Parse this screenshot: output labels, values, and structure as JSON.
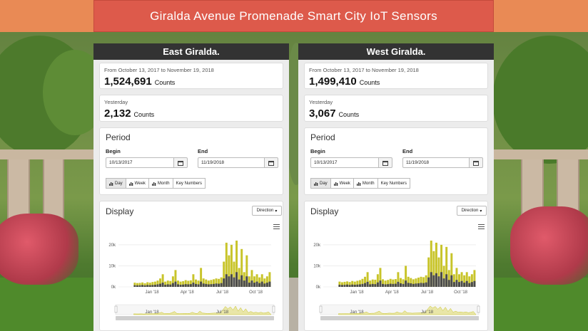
{
  "title": "Giralda Avenue Promenade Smart City IoT Sensors",
  "colors": {
    "banner": "#dd5a4b",
    "series_total": "#c8c42a",
    "series_dir": "#4a4a4a"
  },
  "panels": [
    {
      "name": "East Giralda.",
      "range_text": "From October 13, 2017 to November 19, 2018",
      "total": "1,524,691",
      "total_unit": "Counts",
      "yesterday_label": "Yesterday",
      "yesterday": "2,132",
      "yesterday_unit": "Counts",
      "period_title": "Period",
      "begin_label": "Begin",
      "begin_value": "10/13/2017",
      "end_label": "End",
      "end_value": "11/19/2018",
      "buttons": [
        "Day",
        "Week",
        "Month",
        "Key Numbers"
      ],
      "display_title": "Display",
      "direction_label": "Direction"
    },
    {
      "name": "West Giralda.",
      "range_text": "From October 13, 2017 to November 19, 2018",
      "total": "1,499,410",
      "total_unit": "Counts",
      "yesterday_label": "Yesterday",
      "yesterday": "3,067",
      "yesterday_unit": "Counts",
      "period_title": "Period",
      "begin_label": "Begin",
      "begin_value": "10/13/2017",
      "end_label": "End",
      "end_value": "11/19/2018",
      "buttons": [
        "Day",
        "Week",
        "Month",
        "Key Numbers"
      ],
      "display_title": "Display",
      "direction_label": "Direction"
    }
  ],
  "chart_data": [
    {
      "type": "area",
      "ylim": [
        0,
        22000
      ],
      "yticks": [
        "0k",
        "10k",
        "20k"
      ],
      "xticks": [
        "Jan '18",
        "Apr '18",
        "Jul '18",
        "Oct '18"
      ],
      "navigator_ticks": [
        "Jan '18",
        "Jul '18"
      ],
      "series": [
        {
          "values": [
            2000,
            1800,
            1900,
            2100,
            1700,
            2200,
            2000,
            2300,
            2500,
            3000,
            4000,
            6000,
            2500,
            3000,
            2800,
            5000,
            8000,
            3000,
            2500,
            2700,
            3200,
            2900,
            3100,
            6000,
            3500,
            3000,
            9000,
            4000,
            3500,
            3000,
            3300,
            3600,
            4000,
            3800,
            4500,
            12000,
            21000,
            15000,
            20000,
            12000,
            22000,
            9000,
            18000,
            7000,
            15000,
            5000,
            8000,
            5000,
            6000,
            4500,
            6000,
            4000,
            5000,
            7000
          ]
        },
        {
          "values": [
            800,
            700,
            750,
            900,
            700,
            900,
            800,
            900,
            1000,
            1200,
            1500,
            2000,
            1000,
            1200,
            1100,
            1800,
            2500,
            1200,
            1000,
            1100,
            1300,
            1200,
            1300,
            2000,
            1400,
            1200,
            2500,
            1600,
            1400,
            1200,
            1300,
            1400,
            1600,
            1500,
            1800,
            4000,
            6000,
            5000,
            6000,
            4500,
            7000,
            3500,
            5500,
            3000,
            5000,
            2000,
            3000,
            2000,
            2500,
            1800,
            2500,
            1600,
            2000,
            2500
          ]
        }
      ]
    },
    {
      "type": "area",
      "ylim": [
        0,
        22000
      ],
      "yticks": [
        "0k",
        "10k",
        "20k"
      ],
      "xticks": [
        "Jan '18",
        "Apr '18",
        "Jul '18",
        "Oct '18"
      ],
      "navigator_ticks": [
        "Jan '18",
        "Jul '18"
      ],
      "series": [
        {
          "values": [
            2500,
            2200,
            2400,
            2600,
            2300,
            2800,
            2500,
            2900,
            3200,
            3800,
            4800,
            7000,
            3000,
            3500,
            3400,
            6000,
            9000,
            3600,
            3000,
            3300,
            3800,
            3500,
            3700,
            7000,
            4200,
            3600,
            10000,
            4800,
            4200,
            3600,
            4000,
            4400,
            4800,
            4600,
            5500,
            14000,
            22000,
            17000,
            21000,
            14000,
            20000,
            10000,
            19000,
            8000,
            16000,
            6000,
            9000,
            6000,
            7000,
            5500,
            7000,
            5000,
            6000,
            8000
          ]
        },
        {
          "values": [
            1000,
            900,
            950,
            1100,
            900,
            1100,
            1000,
            1100,
            1200,
            1400,
            1800,
            2400,
            1200,
            1400,
            1300,
            2100,
            3000,
            1400,
            1200,
            1300,
            1500,
            1400,
            1500,
            2400,
            1700,
            1400,
            3000,
            1900,
            1700,
            1400,
            1600,
            1700,
            1900,
            1800,
            2100,
            4500,
            7000,
            5500,
            6500,
            5000,
            7000,
            4000,
            6000,
            3300,
            5500,
            2300,
            3300,
            2300,
            2800,
            2000,
            2800,
            1800,
            2300,
            2800
          ]
        }
      ]
    }
  ]
}
